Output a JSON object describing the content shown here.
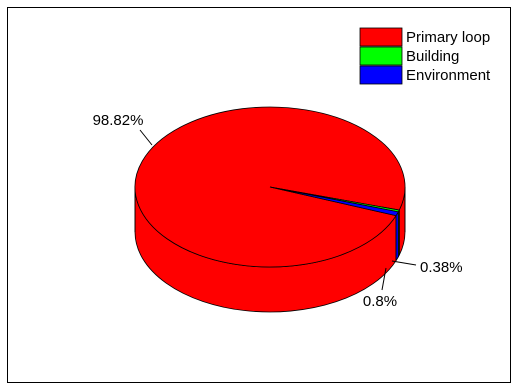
{
  "chart_data": {
    "type": "pie",
    "style": "3d",
    "legend_position": "top-right",
    "slices": [
      {
        "name": "Primary loop",
        "value": 98.82,
        "label": "98.82%",
        "color": "#ff0000"
      },
      {
        "name": "Building",
        "value": 0.38,
        "label": "0.38%",
        "color": "#00ff00"
      },
      {
        "name": "Environment",
        "value": 0.8,
        "label": "0.8%",
        "color": "#0000ff"
      }
    ]
  }
}
